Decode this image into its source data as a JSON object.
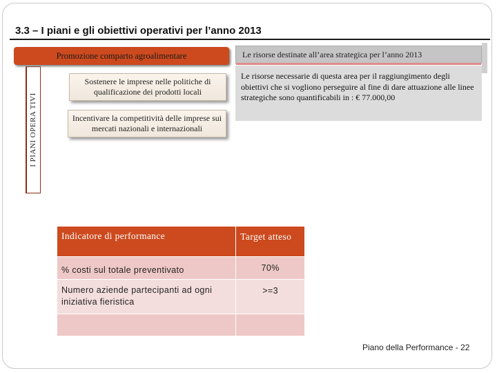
{
  "slide": {
    "title": "3.3 – I piani e gli obiettivi operativi per l’anno 2013",
    "vertical_label": "I PIANI OPERA TIVI",
    "promo_label": "Promozione comparto agroalimentare",
    "objectives": [
      "Sostenere le imprese nelle politiche di qualificazione dei prodotti locali",
      "Incentivare la competitività delle imprese sui mercati nazionali e internazionali"
    ],
    "resources": {
      "header": "Le risorse destinate all’area strategica per l’anno 2013",
      "body": "Le risorse necessarie di questa area per il raggiungimento degli obiettivi che si vogliono perseguire al fine di dare attuazione alle linee strategiche sono quantificabili in : € 77.000,00"
    },
    "table": {
      "header_indicator": "Indicatore di performance",
      "header_target": "Target atteso",
      "rows": [
        {
          "indicator": "% costi sul totale preventivato",
          "target": "70%"
        },
        {
          "indicator": "Numero aziende partecipanti ad ogni iniziativa fieristica",
          "target": ">=3"
        },
        {
          "indicator": "",
          "target": ""
        }
      ]
    },
    "footer": "Piano della Performance - 22"
  },
  "colors": {
    "accent": "#cc4a1e",
    "row_dark": "#eec8c6",
    "row_light": "#f3dedd",
    "resource_bg": "#dcdcdc"
  }
}
